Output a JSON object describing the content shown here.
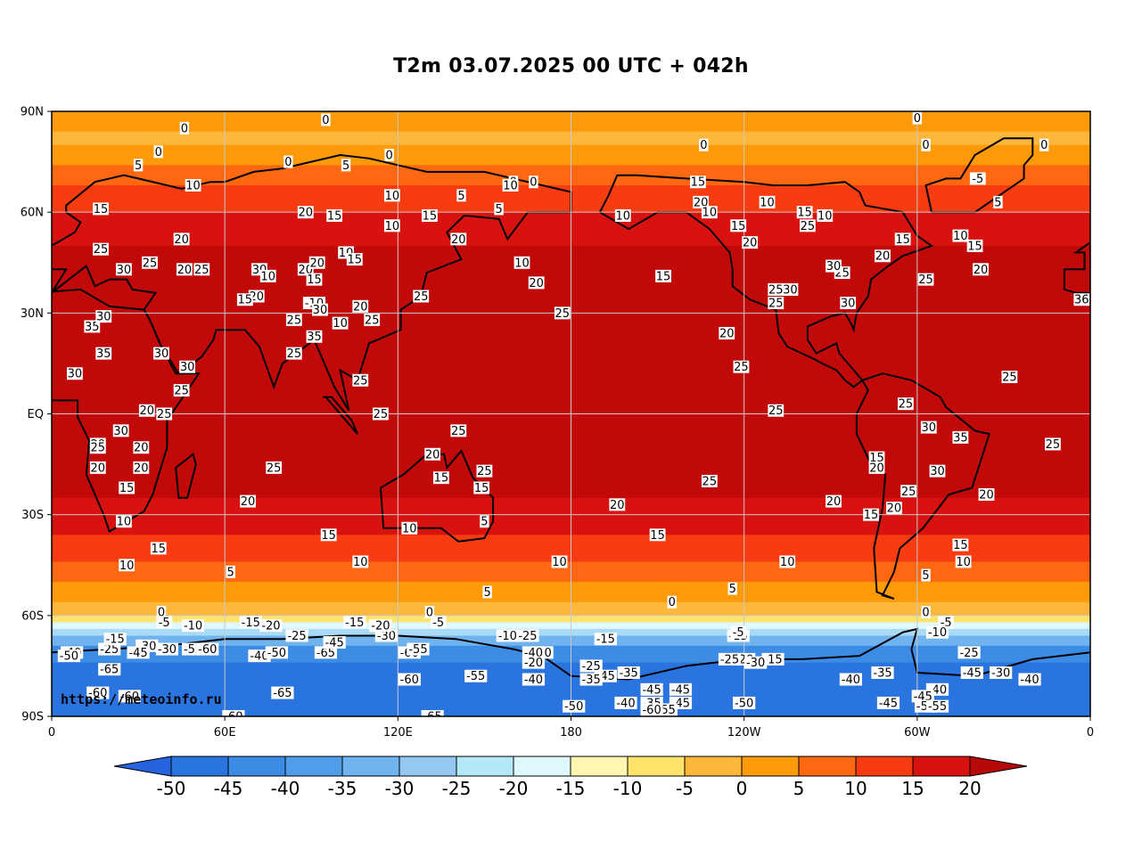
{
  "title": "T2m 03.07.2025 00 UTC + 042h",
  "credit": "https://meteoinfo.ru",
  "map": {
    "lat_ticks": [
      "90N",
      "60N",
      "30N",
      "EQ",
      "30S",
      "60S",
      "90S"
    ],
    "lon_ticks": [
      "0",
      "60E",
      "120E",
      "180",
      "120W",
      "60W",
      "0"
    ],
    "grid": true,
    "bands": [
      {
        "lat": 90,
        "color": "#fd9a0a"
      },
      {
        "lat": 84,
        "color": "#fdb73b"
      },
      {
        "lat": 80,
        "color": "#fd9a0a"
      },
      {
        "lat": 74,
        "color": "#fd6810"
      },
      {
        "lat": 68,
        "color": "#f83c12"
      },
      {
        "lat": 60,
        "color": "#d8130f"
      },
      {
        "lat": 50,
        "color": "#c1090a"
      },
      {
        "lat": -25,
        "color": "#d8130f"
      },
      {
        "lat": -36,
        "color": "#f83c12"
      },
      {
        "lat": -44,
        "color": "#fd6810"
      },
      {
        "lat": -50,
        "color": "#fd9a0a"
      },
      {
        "lat": -56,
        "color": "#fdb73b"
      },
      {
        "lat": -60,
        "color": "#ffe36b"
      },
      {
        "lat": -62,
        "color": "#dff8fb"
      },
      {
        "lat": -64,
        "color": "#a9dbf7"
      },
      {
        "lat": -66,
        "color": "#6fb3ef"
      },
      {
        "lat": -69,
        "color": "#3c8ce6"
      },
      {
        "lat": -74,
        "color": "#2a74df"
      },
      {
        "lat": -90,
        "color": "#2a74df"
      }
    ]
  },
  "contour_labels": [
    {
      "t": "0",
      "lon": 95,
      "lat": 87.5
    },
    {
      "t": "0",
      "lon": 300,
      "lat": 88
    },
    {
      "t": "0",
      "lon": 37,
      "lat": 78
    },
    {
      "t": "0",
      "lon": 46,
      "lat": 85
    },
    {
      "t": "5",
      "lon": 30,
      "lat": 74
    },
    {
      "t": "0",
      "lon": 82,
      "lat": 75
    },
    {
      "t": "5",
      "lon": 102,
      "lat": 74
    },
    {
      "t": "0",
      "lon": 117,
      "lat": 77
    },
    {
      "t": "0",
      "lon": 160,
      "lat": 69
    },
    {
      "t": "0",
      "lon": 167,
      "lat": 69
    },
    {
      "t": "0",
      "lon": 226,
      "lat": 80
    },
    {
      "t": "0",
      "lon": 303,
      "lat": 80
    },
    {
      "t": "-5",
      "lon": 321,
      "lat": 70
    },
    {
      "t": "5",
      "lon": 328,
      "lat": 63
    },
    {
      "t": "0",
      "lon": 344,
      "lat": 80
    },
    {
      "t": "10",
      "lon": 49,
      "lat": 68
    },
    {
      "t": "15",
      "lon": 17,
      "lat": 61
    },
    {
      "t": "20",
      "lon": 88,
      "lat": 60
    },
    {
      "t": "15",
      "lon": 98,
      "lat": 59
    },
    {
      "t": "10",
      "lon": 118,
      "lat": 65
    },
    {
      "t": "10",
      "lon": 118,
      "lat": 56
    },
    {
      "t": "15",
      "lon": 131,
      "lat": 59
    },
    {
      "t": "5",
      "lon": 142,
      "lat": 65
    },
    {
      "t": "5",
      "lon": 155,
      "lat": 61
    },
    {
      "t": "10",
      "lon": 159,
      "lat": 68
    },
    {
      "t": "10",
      "lon": 198,
      "lat": 59
    },
    {
      "t": "15",
      "lon": 224,
      "lat": 69
    },
    {
      "t": "20",
      "lon": 225,
      "lat": 63
    },
    {
      "t": "10",
      "lon": 228,
      "lat": 60
    },
    {
      "t": "15",
      "lon": 238,
      "lat": 56
    },
    {
      "t": "20",
      "lon": 242,
      "lat": 51
    },
    {
      "t": "10",
      "lon": 248,
      "lat": 63
    },
    {
      "t": "15",
      "lon": 261,
      "lat": 60
    },
    {
      "t": "10",
      "lon": 268,
      "lat": 59
    },
    {
      "t": "25",
      "lon": 262,
      "lat": 56
    },
    {
      "t": "15",
      "lon": 295,
      "lat": 52
    },
    {
      "t": "10",
      "lon": 315,
      "lat": 53
    },
    {
      "t": "15",
      "lon": 320,
      "lat": 50
    },
    {
      "t": "20",
      "lon": 288,
      "lat": 47
    },
    {
      "t": "20",
      "lon": 322,
      "lat": 43
    },
    {
      "t": "25",
      "lon": 303,
      "lat": 40
    },
    {
      "t": "25",
      "lon": 274,
      "lat": 42
    },
    {
      "t": "30",
      "lon": 271,
      "lat": 44
    },
    {
      "t": "25",
      "lon": 251,
      "lat": 37
    },
    {
      "t": "30",
      "lon": 256,
      "lat": 37
    },
    {
      "t": "25",
      "lon": 251,
      "lat": 33
    },
    {
      "t": "30",
      "lon": 276,
      "lat": 33
    },
    {
      "t": "20",
      "lon": 234,
      "lat": 24
    },
    {
      "t": "25",
      "lon": 239,
      "lat": 14
    },
    {
      "t": "25",
      "lon": 251,
      "lat": 1
    },
    {
      "t": "25",
      "lon": 332,
      "lat": 11
    },
    {
      "t": "36",
      "lon": 357,
      "lat": 34
    },
    {
      "t": "25",
      "lon": 17,
      "lat": 49
    },
    {
      "t": "20",
      "lon": 45,
      "lat": 52
    },
    {
      "t": "30",
      "lon": 25,
      "lat": 43
    },
    {
      "t": "25",
      "lon": 34,
      "lat": 45
    },
    {
      "t": "20",
      "lon": 46,
      "lat": 43
    },
    {
      "t": "25",
      "lon": 52,
      "lat": 43
    },
    {
      "t": "30",
      "lon": 72,
      "lat": 43
    },
    {
      "t": "10",
      "lon": 75,
      "lat": 41
    },
    {
      "t": "20",
      "lon": 88,
      "lat": 43
    },
    {
      "t": "15",
      "lon": 91,
      "lat": 40
    },
    {
      "t": "20",
      "lon": 92,
      "lat": 45
    },
    {
      "t": "10",
      "lon": 102,
      "lat": 48
    },
    {
      "t": "15",
      "lon": 105,
      "lat": 46
    },
    {
      "t": "20",
      "lon": 71,
      "lat": 35
    },
    {
      "t": "15",
      "lon": 67,
      "lat": 34
    },
    {
      "t": "-10",
      "lon": 91,
      "lat": 33
    },
    {
      "t": "20",
      "lon": 107,
      "lat": 32
    },
    {
      "t": "25",
      "lon": 111,
      "lat": 28
    },
    {
      "t": "10",
      "lon": 100,
      "lat": 27
    },
    {
      "t": "25",
      "lon": 84,
      "lat": 28
    },
    {
      "t": "25",
      "lon": 128,
      "lat": 35
    },
    {
      "t": "20",
      "lon": 141,
      "lat": 52
    },
    {
      "t": "10",
      "lon": 163,
      "lat": 45
    },
    {
      "t": "20",
      "lon": 168,
      "lat": 39
    },
    {
      "t": "15",
      "lon": 212,
      "lat": 41
    },
    {
      "t": "25",
      "lon": 177,
      "lat": 30
    },
    {
      "t": "35",
      "lon": 14,
      "lat": 26
    },
    {
      "t": "30",
      "lon": 18,
      "lat": 29
    },
    {
      "t": "35",
      "lon": 18,
      "lat": 18
    },
    {
      "t": "30",
      "lon": 38,
      "lat": 18
    },
    {
      "t": "30",
      "lon": 93,
      "lat": 31
    },
    {
      "t": "35",
      "lon": 91,
      "lat": 23
    },
    {
      "t": "30",
      "lon": 8,
      "lat": 12
    },
    {
      "t": "30",
      "lon": 47,
      "lat": 14
    },
    {
      "t": "25",
      "lon": 45,
      "lat": 7
    },
    {
      "t": "20",
      "lon": 33,
      "lat": 1
    },
    {
      "t": "25",
      "lon": 39,
      "lat": 0
    },
    {
      "t": "30",
      "lon": 24,
      "lat": -5
    },
    {
      "t": "25",
      "lon": 84,
      "lat": 18
    },
    {
      "t": "25",
      "lon": 107,
      "lat": 10
    },
    {
      "t": "25",
      "lon": 114,
      "lat": 0
    },
    {
      "t": "25",
      "lon": 141,
      "lat": -5
    },
    {
      "t": "20",
      "lon": 132,
      "lat": -12
    },
    {
      "t": "15",
      "lon": 135,
      "lat": -19
    },
    {
      "t": "25",
      "lon": 150,
      "lat": -17
    },
    {
      "t": "15",
      "lon": 149,
      "lat": -22
    },
    {
      "t": "5",
      "lon": 150,
      "lat": -32
    },
    {
      "t": "10",
      "lon": 124,
      "lat": -34
    },
    {
      "t": "20",
      "lon": 16,
      "lat": -9
    },
    {
      "t": "25",
      "lon": 16,
      "lat": -10
    },
    {
      "t": "20",
      "lon": 16,
      "lat": -16
    },
    {
      "t": "20",
      "lon": 31,
      "lat": -16
    },
    {
      "t": "15",
      "lon": 26,
      "lat": -22
    },
    {
      "t": "20",
      "lon": 31,
      "lat": -10
    },
    {
      "t": "10",
      "lon": 25,
      "lat": -32
    },
    {
      "t": "15",
      "lon": 37,
      "lat": -40
    },
    {
      "t": "10",
      "lon": 26,
      "lat": -45
    },
    {
      "t": "25",
      "lon": 77,
      "lat": -16
    },
    {
      "t": "20",
      "lon": 68,
      "lat": -26
    },
    {
      "t": "15",
      "lon": 96,
      "lat": -36
    },
    {
      "t": "10",
      "lon": 107,
      "lat": -44
    },
    {
      "t": "5",
      "lon": 62,
      "lat": -47
    },
    {
      "t": "20",
      "lon": 196,
      "lat": -27
    },
    {
      "t": "25",
      "lon": 228,
      "lat": -20
    },
    {
      "t": "15",
      "lon": 210,
      "lat": -36
    },
    {
      "t": "10",
      "lon": 176,
      "lat": -44
    },
    {
      "t": "10",
      "lon": 255,
      "lat": -44
    },
    {
      "t": "5",
      "lon": 236,
      "lat": -52
    },
    {
      "t": "5",
      "lon": 151,
      "lat": -53
    },
    {
      "t": "0",
      "lon": 215,
      "lat": -56
    },
    {
      "t": "20",
      "lon": 271,
      "lat": -26
    },
    {
      "t": "15",
      "lon": 286,
      "lat": -13
    },
    {
      "t": "20",
      "lon": 286,
      "lat": -16
    },
    {
      "t": "25",
      "lon": 297,
      "lat": -23
    },
    {
      "t": "20",
      "lon": 292,
      "lat": -28
    },
    {
      "t": "15",
      "lon": 284,
      "lat": -30
    },
    {
      "t": "25",
      "lon": 296,
      "lat": 3
    },
    {
      "t": "30",
      "lon": 304,
      "lat": -4
    },
    {
      "t": "35",
      "lon": 315,
      "lat": -7
    },
    {
      "t": "30",
      "lon": 307,
      "lat": -17
    },
    {
      "t": "20",
      "lon": 324,
      "lat": -24
    },
    {
      "t": "25",
      "lon": 347,
      "lat": -9
    },
    {
      "t": "15",
      "lon": 315,
      "lat": -39
    },
    {
      "t": "10",
      "lon": 316,
      "lat": -44
    },
    {
      "t": "5",
      "lon": 303,
      "lat": -48
    },
    {
      "t": "0",
      "lon": 38,
      "lat": -59
    },
    {
      "t": "-5",
      "lon": 39,
      "lat": -62
    },
    {
      "t": "-10",
      "lon": 49,
      "lat": -63
    },
    {
      "t": "-15",
      "lon": 69,
      "lat": -62
    },
    {
      "t": "-20",
      "lon": 76,
      "lat": -63
    },
    {
      "t": "-25",
      "lon": 85,
      "lat": -66
    },
    {
      "t": "-30",
      "lon": 116,
      "lat": -66
    },
    {
      "t": "-15",
      "lon": 105,
      "lat": -62
    },
    {
      "t": "-20",
      "lon": 114,
      "lat": -63
    },
    {
      "t": "-5",
      "lon": 134,
      "lat": -62
    },
    {
      "t": "0",
      "lon": 131,
      "lat": -59
    },
    {
      "t": "-10",
      "lon": 158,
      "lat": -66
    },
    {
      "t": "-25",
      "lon": 165,
      "lat": -66
    },
    {
      "t": "-15",
      "lon": 192,
      "lat": -67
    },
    {
      "t": "-15",
      "lon": 238,
      "lat": -66
    },
    {
      "t": "-5",
      "lon": 238,
      "lat": -65
    },
    {
      "t": "0",
      "lon": 303,
      "lat": -59
    },
    {
      "t": "-5",
      "lon": 310,
      "lat": -62
    },
    {
      "t": "-10",
      "lon": 307,
      "lat": -65
    },
    {
      "t": "-25",
      "lon": 318,
      "lat": -71
    },
    {
      "t": "-30",
      "lon": 329,
      "lat": -77
    },
    {
      "t": "-40",
      "lon": 339,
      "lat": -79
    },
    {
      "t": "-45",
      "lon": 319,
      "lat": -77
    },
    {
      "t": "-40",
      "lon": 307,
      "lat": -82
    },
    {
      "t": "-45",
      "lon": 302,
      "lat": -84
    },
    {
      "t": "-35",
      "lon": 288,
      "lat": -77
    },
    {
      "t": "-50",
      "lon": 303,
      "lat": -87
    },
    {
      "t": "-55",
      "lon": 307,
      "lat": -87
    },
    {
      "t": "-40",
      "lon": 277,
      "lat": -79
    },
    {
      "t": "-45",
      "lon": 290,
      "lat": -86
    },
    {
      "t": "-15",
      "lon": 250,
      "lat": -73
    },
    {
      "t": "-20",
      "lon": 240,
      "lat": -73
    },
    {
      "t": "-30",
      "lon": 244,
      "lat": -74
    },
    {
      "t": "-25",
      "lon": 235,
      "lat": -73
    },
    {
      "t": "-50",
      "lon": 240,
      "lat": -86
    },
    {
      "t": "-45",
      "lon": 218,
      "lat": -82
    },
    {
      "t": "-45",
      "lon": 218,
      "lat": -86
    },
    {
      "t": "-35",
      "lon": 208,
      "lat": -86
    },
    {
      "t": "-55",
      "lon": 213,
      "lat": -88
    },
    {
      "t": "-60",
      "lon": 208,
      "lat": -88
    },
    {
      "t": "-45",
      "lon": 208,
      "lat": -82
    },
    {
      "t": "-40",
      "lon": 199,
      "lat": -86
    },
    {
      "t": "-35",
      "lon": 200,
      "lat": -77
    },
    {
      "t": "-45",
      "lon": 192,
      "lat": -78
    },
    {
      "t": "-25",
      "lon": 187,
      "lat": -75
    },
    {
      "t": "-35",
      "lon": 187,
      "lat": -79
    },
    {
      "t": "-50",
      "lon": 181,
      "lat": -87
    },
    {
      "t": "-20",
      "lon": 170,
      "lat": -71
    },
    {
      "t": "-40",
      "lon": 167,
      "lat": -71
    },
    {
      "t": "-40",
      "lon": 167,
      "lat": -79
    },
    {
      "t": "-20",
      "lon": 167,
      "lat": -74
    },
    {
      "t": "-55",
      "lon": 147,
      "lat": -78
    },
    {
      "t": "-60",
      "lon": 124,
      "lat": -71
    },
    {
      "t": "-55",
      "lon": 127,
      "lat": -70
    },
    {
      "t": "-60",
      "lon": 124,
      "lat": -79
    },
    {
      "t": "-65",
      "lon": 132,
      "lat": -90
    },
    {
      "t": "-65",
      "lon": 95,
      "lat": -71
    },
    {
      "t": "-65",
      "lon": 80,
      "lat": -83
    },
    {
      "t": "-40",
      "lon": 72,
      "lat": -72
    },
    {
      "t": "-50",
      "lon": 78,
      "lat": -71
    },
    {
      "t": "-45",
      "lon": 98,
      "lat": -68
    },
    {
      "t": "-55",
      "lon": 49,
      "lat": -70
    },
    {
      "t": "-60",
      "lon": 54,
      "lat": -70
    },
    {
      "t": "-30",
      "lon": 40,
      "lat": -70
    },
    {
      "t": "-30",
      "lon": 33,
      "lat": -69
    },
    {
      "t": "-45",
      "lon": 30,
      "lat": -71
    },
    {
      "t": "-25",
      "lon": 20,
      "lat": -70
    },
    {
      "t": "-15",
      "lon": 22,
      "lat": -67
    },
    {
      "t": "-40",
      "lon": 7,
      "lat": -71
    },
    {
      "t": "-50",
      "lon": 6,
      "lat": -72
    },
    {
      "t": "-65",
      "lon": 20,
      "lat": -76
    },
    {
      "t": "-60",
      "lon": 16,
      "lat": -83
    },
    {
      "t": "-60",
      "lon": 27,
      "lat": -84
    },
    {
      "t": "-60",
      "lon": 63,
      "lat": -90
    }
  ],
  "colorbar": {
    "ticks": [
      "-50",
      "-45",
      "-40",
      "-35",
      "-30",
      "-25",
      "-20",
      "-15",
      "-10",
      "-5",
      "0",
      "5",
      "10",
      "15",
      "20"
    ],
    "colors": [
      "#2563e0",
      "#2a74df",
      "#3c8ce6",
      "#509dea",
      "#6fb3ef",
      "#94c8f3",
      "#b4e8f8",
      "#dff8fb",
      "#fff6b0",
      "#ffe36b",
      "#fdb73b",
      "#fd9a0a",
      "#fd6810",
      "#f83c12",
      "#d8130f",
      "#b7080a"
    ]
  }
}
